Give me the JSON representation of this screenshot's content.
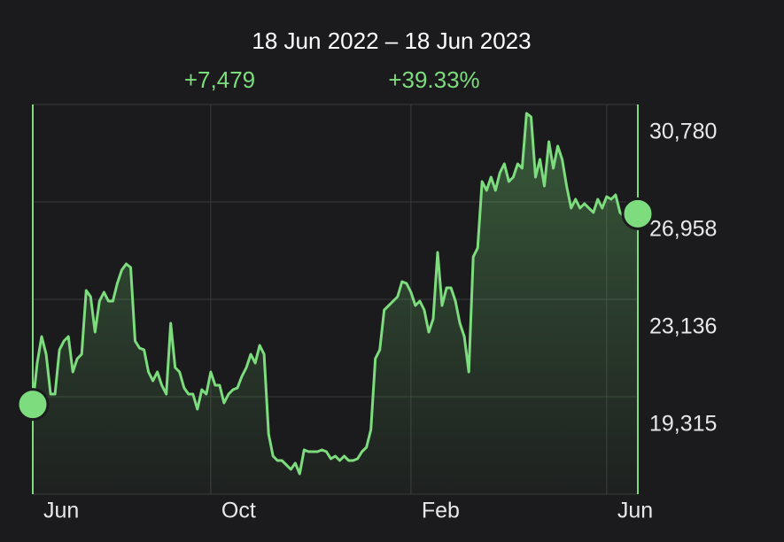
{
  "chart_data": {
    "type": "line",
    "title": "18 Jun 2022 – 18 Jun 2023",
    "change": "+7,479",
    "change_percent": "+39.33%",
    "color": "#7ddc7d",
    "values": [
      19016,
      20636,
      21678,
      20983,
      19420,
      19420,
      21157,
      21504,
      21678,
      20289,
      20810,
      20983,
      23485,
      23241,
      21852,
      23068,
      23415,
      23068,
      23068,
      23763,
      24284,
      24527,
      24388,
      21504,
      21226,
      21157,
      20289,
      19941,
      20289,
      19767,
      19420,
      22199,
      20462,
      20289,
      19663,
      19420,
      19420,
      18829,
      19594,
      19420,
      20289,
      19767,
      19767,
      19073,
      19420,
      19594,
      19663,
      20115,
      20462,
      20983,
      20636,
      21331,
      20983,
      17857,
      16988,
      16815,
      16815,
      16641,
      16467,
      16710,
      16293,
      17231,
      17162,
      17162,
      17162,
      17231,
      17162,
      16884,
      16988,
      16815,
      16988,
      16815,
      16815,
      16884,
      17162,
      17336,
      18030,
      20810,
      21157,
      22720,
      22894,
      23068,
      23241,
      23832,
      23763,
      23415,
      22894,
      23068,
      22720,
      21852,
      22373,
      24978,
      22894,
      23589,
      23589,
      23068,
      22199,
      21678,
      20289,
      24805,
      25152,
      27758,
      27410,
      27931,
      27410,
      28105,
      28452,
      27758,
      27931,
      28452,
      28279,
      30433,
      30294,
      27931,
      28626,
      27584,
      29321,
      28279,
      29147,
      28626,
      27584,
      26715,
      27063,
      26715,
      26889,
      26715,
      26542,
      27063,
      26715,
      27167,
      27063,
      27237,
      26542,
      26368,
      26472,
      26368,
      26495
    ],
    "xticks": [
      {
        "value": 0,
        "label": "Jun"
      },
      {
        "value": 40,
        "label": "Oct"
      },
      {
        "value": 85,
        "label": "Feb"
      },
      {
        "value": 129,
        "label": "Jun"
      }
    ],
    "ylim": [
      15494,
      30780
    ],
    "yticks": [
      {
        "value": 30780,
        "label": "30,780"
      },
      {
        "value": 26958,
        "label": "26,958"
      },
      {
        "value": 23136,
        "label": "23,136"
      },
      {
        "value": 19315,
        "label": "19,315"
      }
    ],
    "grid": true
  }
}
